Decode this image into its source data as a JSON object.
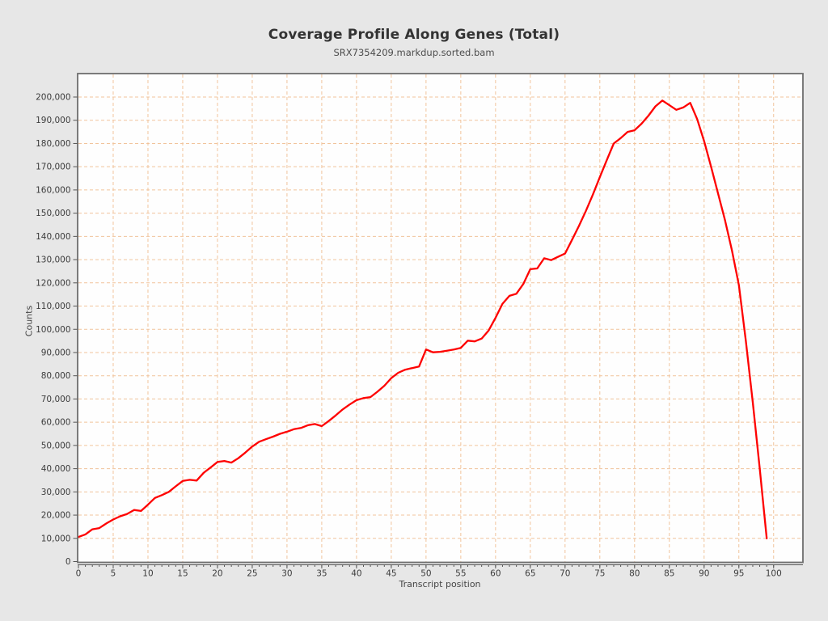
{
  "chart_data": {
    "type": "line",
    "title": "Coverage Profile Along Genes (Total)",
    "subtitle": "SRX7354209.markdup.sorted.bam",
    "xlabel": "Transcript position",
    "ylabel": "Counts",
    "legend": "none",
    "grid": true,
    "grid_style": "dashed",
    "xlim": [
      0,
      104.1
    ],
    "ylim": [
      0,
      209750
    ],
    "x_ticks": [
      0,
      5,
      10,
      15,
      20,
      25,
      30,
      35,
      40,
      45,
      50,
      55,
      60,
      65,
      70,
      75,
      80,
      85,
      90,
      95,
      100
    ],
    "x_minor_tick_step": 1,
    "y_ticks": [
      0,
      10000,
      20000,
      30000,
      40000,
      50000,
      60000,
      70000,
      80000,
      90000,
      100000,
      110000,
      120000,
      130000,
      140000,
      150000,
      160000,
      170000,
      180000,
      190000,
      200000
    ],
    "series": [
      {
        "name": "SRX7354209.markdup.sorted.bam",
        "color": "#fe0101",
        "x": [
          0,
          1,
          2,
          3,
          4,
          5,
          6,
          7,
          8,
          9,
          10,
          11,
          12,
          13,
          14,
          15,
          16,
          17,
          18,
          19,
          20,
          21,
          22,
          23,
          24,
          25,
          26,
          27,
          28,
          29,
          30,
          31,
          32,
          33,
          34,
          35,
          36,
          37,
          38,
          39,
          40,
          41,
          42,
          43,
          44,
          45,
          46,
          47,
          48,
          49,
          50,
          51,
          52,
          53,
          54,
          55,
          56,
          57,
          58,
          59,
          60,
          61,
          62,
          63,
          64,
          65,
          66,
          67,
          68,
          69,
          70,
          71,
          72,
          73,
          74,
          75,
          76,
          77,
          78,
          79,
          80,
          81,
          82,
          83,
          84,
          85,
          86,
          87,
          88,
          89,
          90,
          91,
          92,
          93,
          94,
          95,
          96,
          97,
          98,
          99
        ],
        "values": [
          10600,
          11700,
          13900,
          14400,
          16400,
          18100,
          19500,
          20500,
          22200,
          21800,
          24500,
          27400,
          28600,
          30000,
          32400,
          34700,
          35200,
          34900,
          38200,
          40500,
          42900,
          43300,
          42600,
          44500,
          46900,
          49500,
          51600,
          52700,
          53800,
          55000,
          55900,
          57000,
          57500,
          58700,
          59200,
          58300,
          60500,
          62900,
          65500,
          67600,
          69500,
          70400,
          70800,
          73100,
          75700,
          79000,
          81300,
          82600,
          83300,
          84000,
          91300,
          90100,
          90300,
          90800,
          91300,
          92000,
          95100,
          94800,
          96000,
          99500,
          105000,
          111000,
          114400,
          115300,
          119500,
          125900,
          126200,
          130600,
          129800,
          131200,
          132600,
          138500,
          144500,
          151000,
          158000,
          165500,
          172800,
          180000,
          182300,
          185000,
          185700,
          188500,
          192000,
          196000,
          198500,
          196500,
          194500,
          195500,
          197500,
          190500,
          181000,
          170000,
          158500,
          147000,
          134000,
          119000,
          95000,
          68500,
          40000,
          10000
        ]
      }
    ],
    "colors": {
      "page_bg": "#e7e7e7",
      "plot_bg": "#fefefe",
      "grid": "#f1c49c",
      "border": "#6f6f6f",
      "axis": "#555555",
      "tick_text": "#3c3c3c",
      "title_text": "#333333",
      "subtitle_text": "#4d4d4d",
      "line": "#fe0101"
    }
  }
}
